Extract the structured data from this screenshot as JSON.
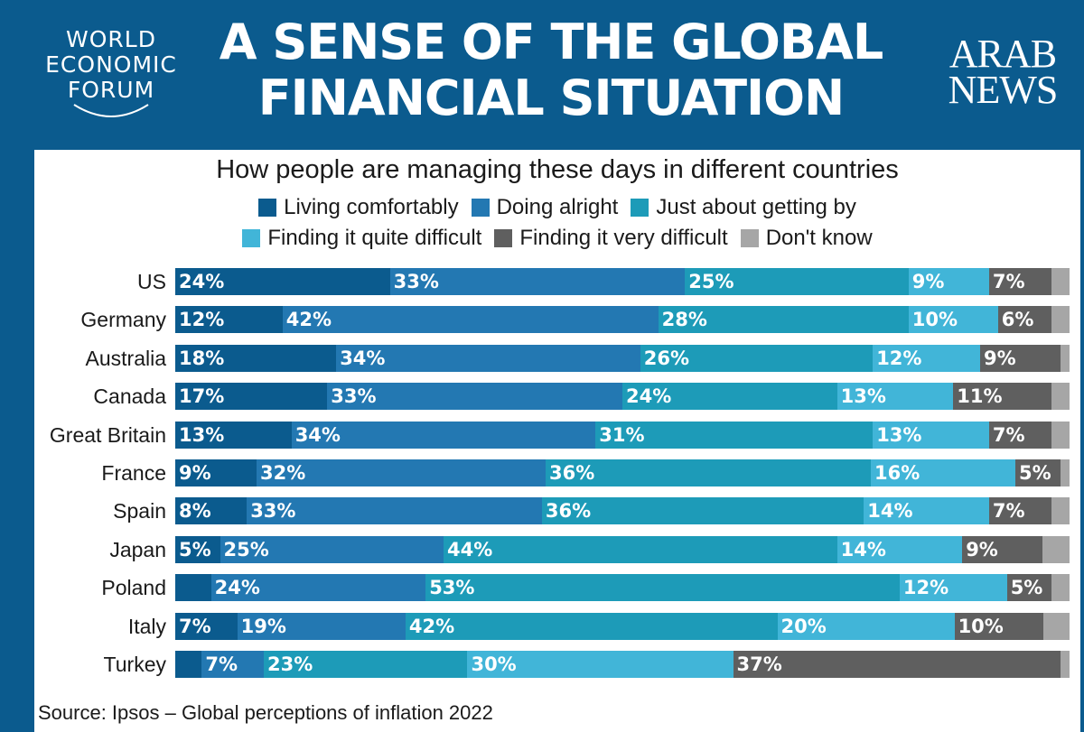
{
  "header": {
    "logo_left": [
      "WORLD",
      "ECONOMIC",
      "FORUM"
    ],
    "title_lines": [
      "A SENSE OF THE GLOBAL",
      "FINANCIAL SITUATION"
    ],
    "logo_right": [
      "ARAB",
      "NEWS"
    ]
  },
  "source": "Source: Ipsos – Global perceptions of inflation 2022",
  "colors": {
    "header": "#0b5b8e",
    "series": [
      "#0b5b8e",
      "#2378b2",
      "#1d9bb8",
      "#41b5d8",
      "#5f5f5f",
      "#a6a6a6"
    ]
  },
  "chart_data": {
    "type": "bar",
    "orientation": "horizontal",
    "stacked": true,
    "title": "How people are managing these days in different countries",
    "categories": [
      "US",
      "Germany",
      "Australia",
      "Canada",
      "Great Britain",
      "France",
      "Spain",
      "Japan",
      "Poland",
      "Italy",
      "Turkey"
    ],
    "series": [
      {
        "name": "Living comfortably",
        "values": [
          24,
          12,
          18,
          17,
          13,
          9,
          8,
          5,
          4,
          7,
          3
        ]
      },
      {
        "name": "Doing alright",
        "values": [
          33,
          42,
          34,
          33,
          34,
          32,
          33,
          25,
          24,
          19,
          7
        ]
      },
      {
        "name": "Just about getting by",
        "values": [
          25,
          28,
          26,
          24,
          31,
          36,
          36,
          44,
          53,
          42,
          23
        ]
      },
      {
        "name": "Finding it quite difficult",
        "values": [
          9,
          10,
          12,
          13,
          13,
          16,
          14,
          14,
          12,
          20,
          30
        ]
      },
      {
        "name": "Finding it very difficult",
        "values": [
          7,
          6,
          9,
          11,
          7,
          5,
          7,
          9,
          5,
          10,
          37
        ]
      },
      {
        "name": "Don't know",
        "values": [
          2,
          2,
          1,
          2,
          2,
          1,
          2,
          3,
          2,
          3,
          1
        ]
      }
    ],
    "data_labels": [
      [
        "24%",
        "33%",
        "25%",
        "9%",
        "7%",
        ""
      ],
      [
        "12%",
        "42%",
        "28%",
        "10%",
        "6%",
        ""
      ],
      [
        "18%",
        "34%",
        "26%",
        "12%",
        "9%",
        ""
      ],
      [
        "17%",
        "33%",
        "24%",
        "13%",
        "11%",
        ""
      ],
      [
        "13%",
        "34%",
        "31%",
        "13%",
        "7%",
        ""
      ],
      [
        "9%",
        "32%",
        "36%",
        "16%",
        "5%",
        ""
      ],
      [
        "8%",
        "33%",
        "36%",
        "14%",
        "7%",
        ""
      ],
      [
        "5%",
        "25%",
        "44%",
        "14%",
        "9%",
        ""
      ],
      [
        "",
        "24%",
        "53%",
        "12%",
        "5%",
        ""
      ],
      [
        "7%",
        "19%",
        "42%",
        "20%",
        "10%",
        ""
      ],
      [
        "",
        "7%",
        "23%",
        "30%",
        "37%",
        ""
      ]
    ],
    "xlim": [
      0,
      100
    ]
  }
}
